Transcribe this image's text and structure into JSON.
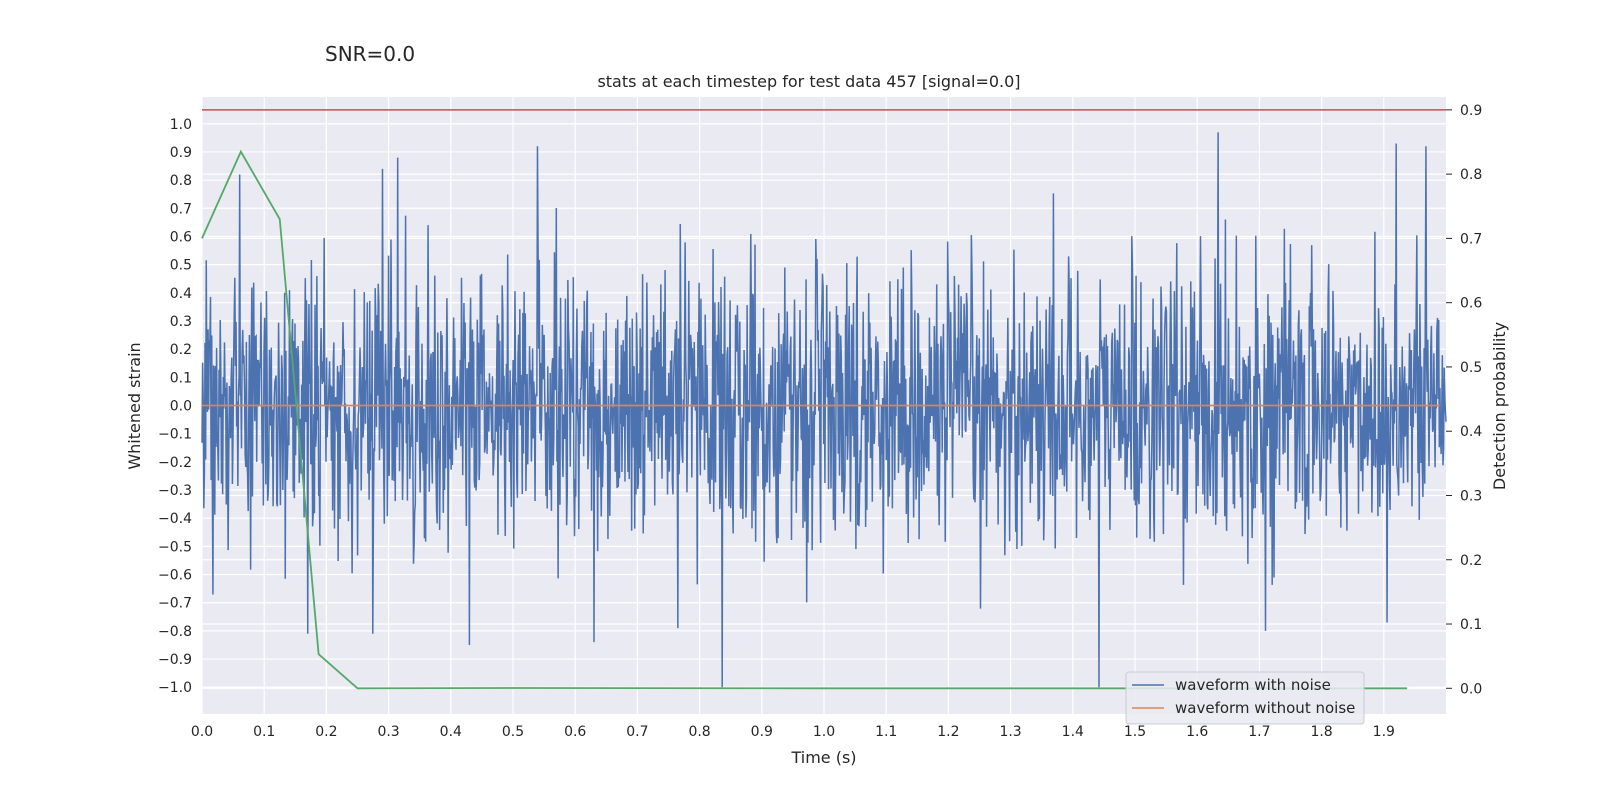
{
  "chart_data": {
    "type": "line",
    "suptitle": "SNR=0.0",
    "title": "stats at each timestep for test data 457 [signal=0.0]",
    "xlabel": "Time (s)",
    "ylabel_left": "Whitened strain",
    "ylabel_right": "Detection probability",
    "xlim": [
      0.0,
      2.0
    ],
    "ylim_left": [
      -1.095,
      1.095
    ],
    "ylim_right": [
      -0.04,
      0.92
    ],
    "x_ticks": [
      "0.0",
      "0.1",
      "0.2",
      "0.3",
      "0.4",
      "0.5",
      "0.6",
      "0.7",
      "0.8",
      "0.9",
      "1.0",
      "1.1",
      "1.2",
      "1.3",
      "1.4",
      "1.5",
      "1.6",
      "1.7",
      "1.8",
      "1.9"
    ],
    "y_left_ticks": [
      "1.0",
      "0.9",
      "0.8",
      "0.7",
      "0.6",
      "0.5",
      "0.4",
      "0.3",
      "0.2",
      "0.1",
      "0.0",
      "−0.1",
      "−0.2",
      "−0.3",
      "−0.4",
      "−0.5",
      "−0.6",
      "−0.7",
      "−0.8",
      "−0.9",
      "−1.0"
    ],
    "y_right_ticks": [
      "0.9",
      "0.8",
      "0.7",
      "0.6",
      "0.5",
      "0.4",
      "0.3",
      "0.2",
      "0.1",
      "0.0"
    ],
    "threshold": {
      "value": 0.9,
      "axis": "right",
      "color": "#c44e52"
    },
    "series": [
      {
        "name": "waveform with noise",
        "axis": "left",
        "color": "#4c72b0",
        "kind": "noise",
        "n_points": 2048,
        "x_range": [
          0.0,
          2.0
        ],
        "range": [
          -1.0,
          0.97
        ],
        "spikes": [
          {
            "x": 0.061,
            "y": 0.82
          },
          {
            "x": 0.29,
            "y": 0.84
          },
          {
            "x": 0.315,
            "y": 0.88
          },
          {
            "x": 0.539,
            "y": 0.92
          },
          {
            "x": 1.634,
            "y": 0.97
          },
          {
            "x": 1.92,
            "y": 0.93
          },
          {
            "x": 1.968,
            "y": 0.92
          },
          {
            "x": 0.17,
            "y": -0.81
          },
          {
            "x": 0.43,
            "y": -0.85
          },
          {
            "x": 0.63,
            "y": -0.84
          },
          {
            "x": 1.442,
            "y": -1.0
          },
          {
            "x": 1.71,
            "y": -0.8
          },
          {
            "x": 1.905,
            "y": -0.77
          },
          {
            "x": 0.275,
            "y": -0.81
          },
          {
            "x": 0.765,
            "y": -0.79
          }
        ]
      },
      {
        "name": "waveform without noise",
        "axis": "left",
        "color": "#dd8452",
        "x": [
          0.0,
          1.99
        ],
        "y": [
          0.0,
          0.0
        ]
      },
      {
        "name": "detection probability",
        "axis": "right",
        "color": "#55a868",
        "x": [
          0.0,
          0.0625,
          0.125,
          0.1875,
          0.25,
          0.5,
          1.0,
          1.5,
          1.9375
        ],
        "y": [
          0.7,
          0.835,
          0.73,
          0.053,
          0.0,
          0.0005,
          0.0,
          0.0,
          0.0
        ]
      }
    ],
    "legend": {
      "location": "lower-right",
      "entries": [
        {
          "label": "waveform with noise",
          "color": "#4c72b0"
        },
        {
          "label": "waveform without noise",
          "color": "#dd8452"
        }
      ]
    }
  }
}
